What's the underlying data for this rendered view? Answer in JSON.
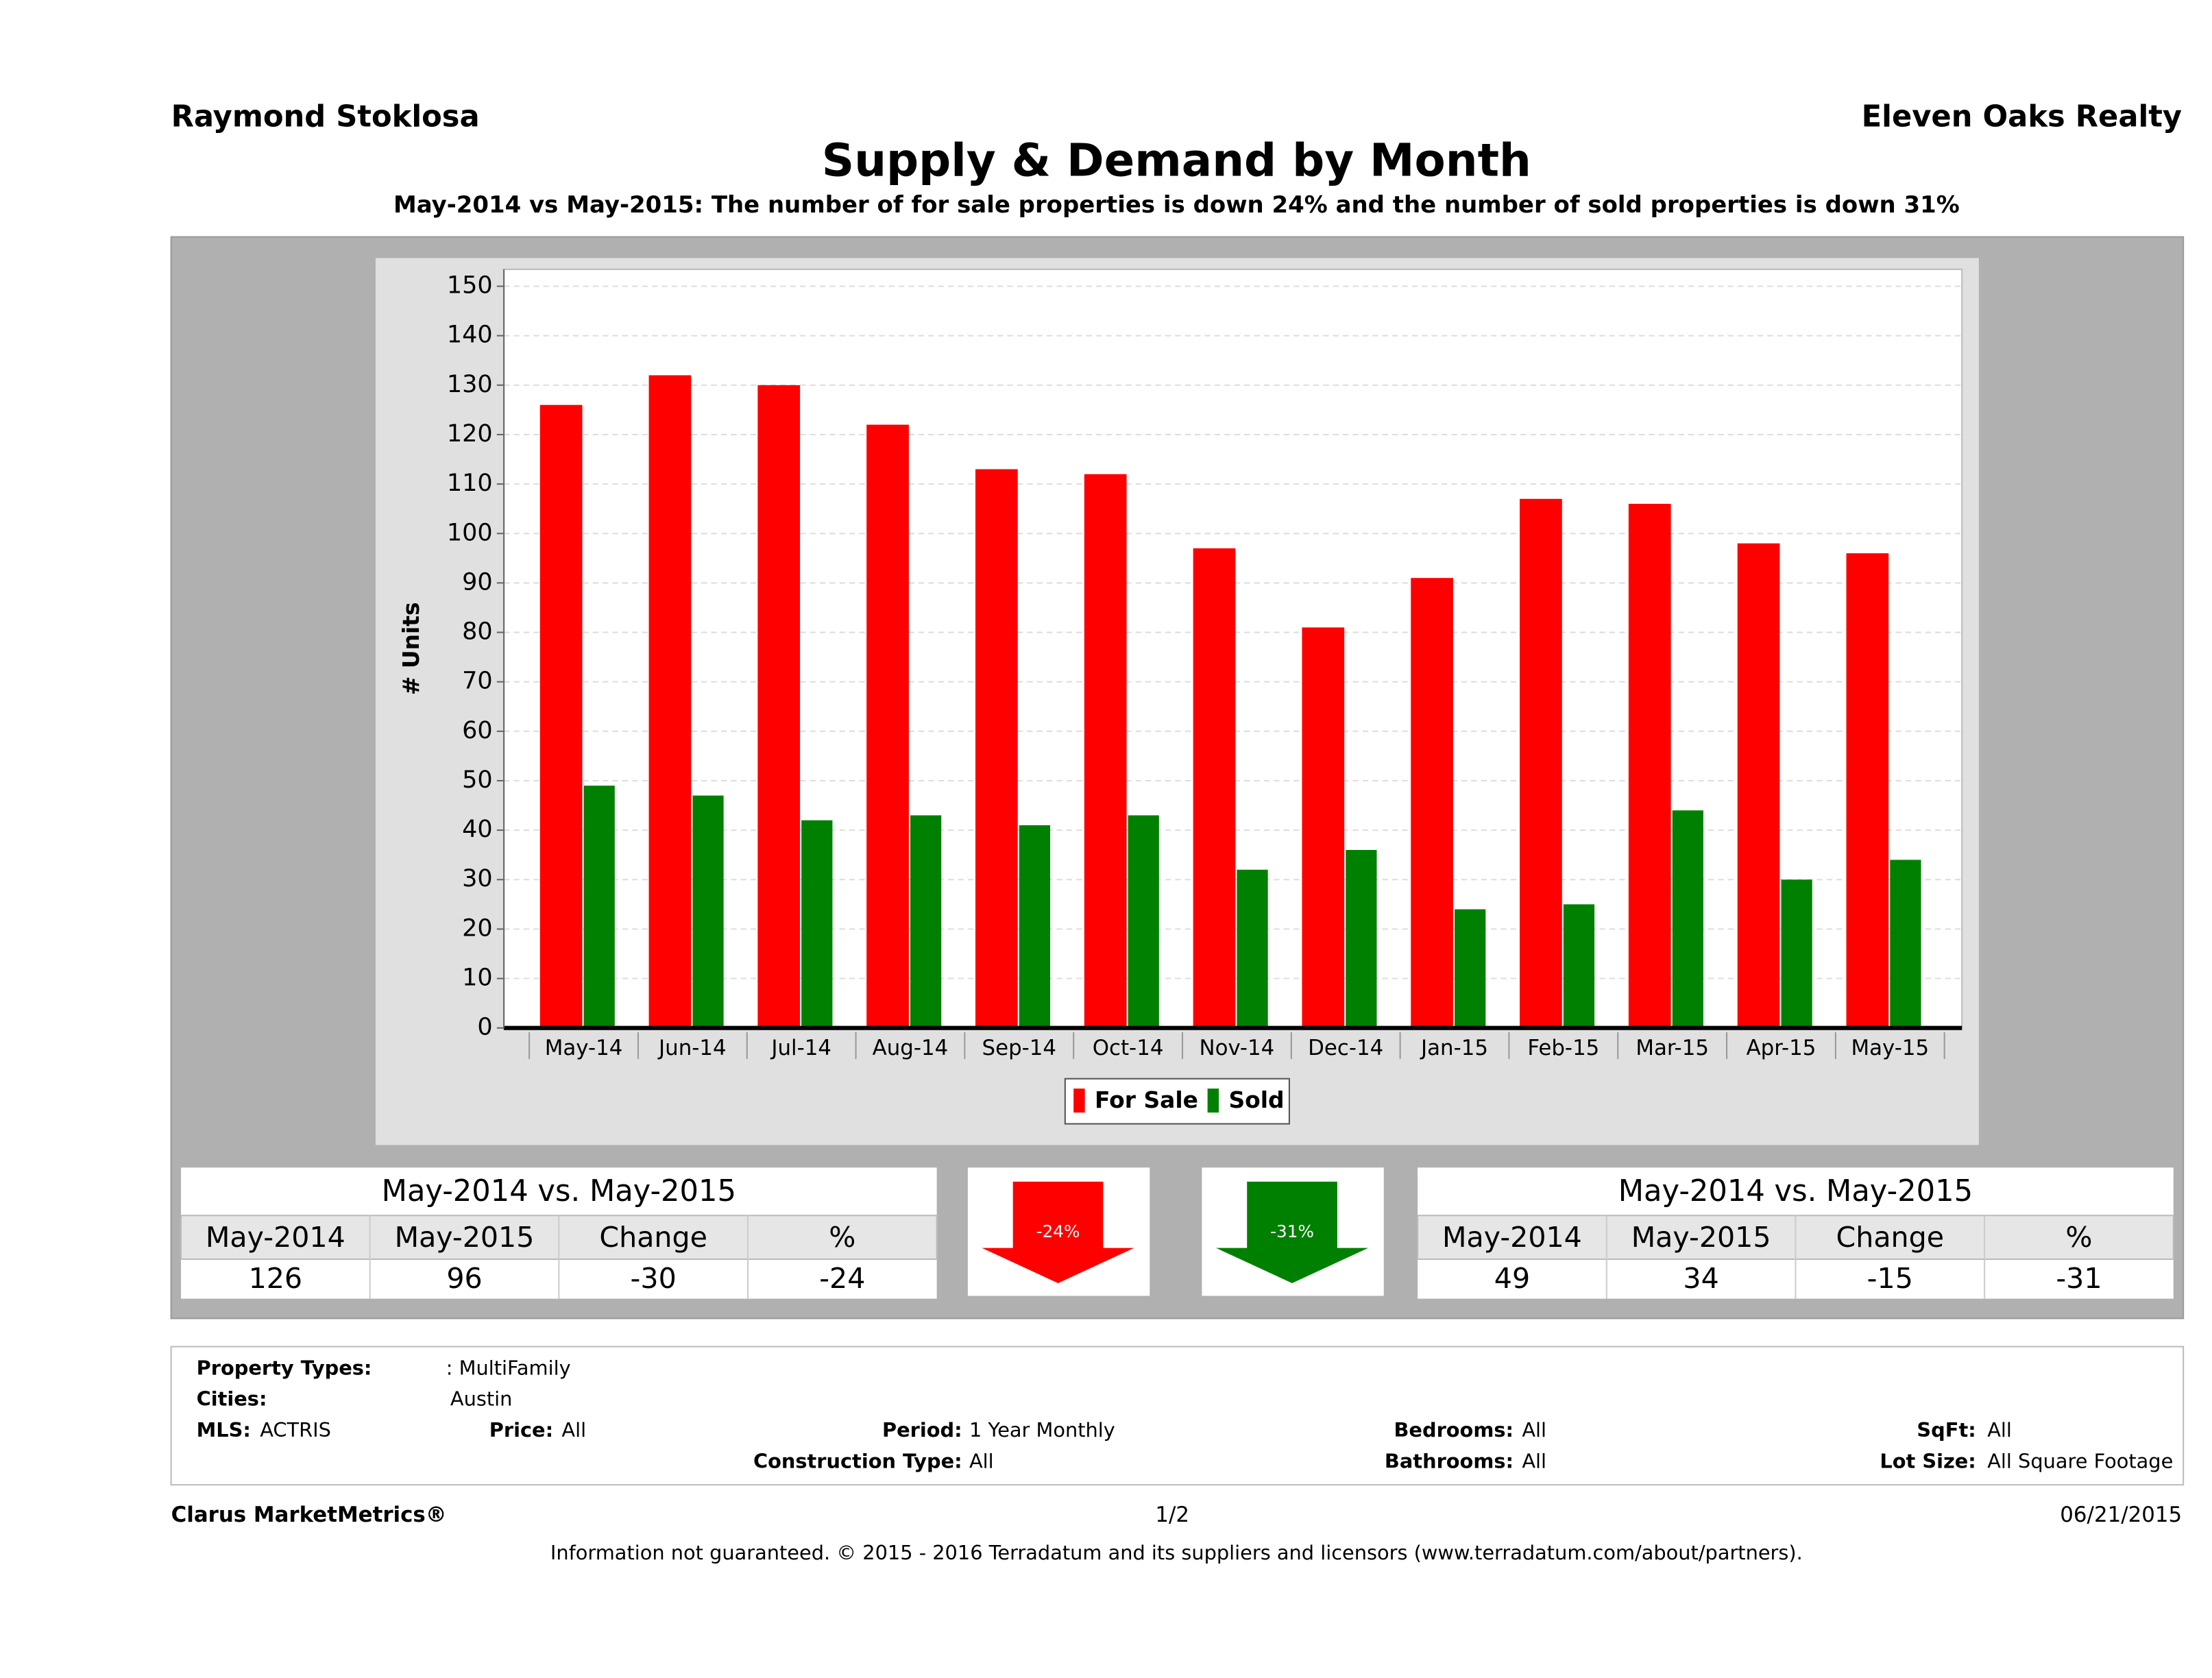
{
  "header": {
    "left": "Raymond Stoklosa",
    "right": "Eleven Oaks Realty"
  },
  "chart_data": {
    "type": "bar",
    "title": "Supply & Demand by Month",
    "subtitle": "May-2014 vs May-2015: The number of for sale properties is down 24% and the number of sold properties is down 31%",
    "y_label": "# Units",
    "categories": [
      "May-14",
      "Jun-14",
      "Jul-14",
      "Aug-14",
      "Sep-14",
      "Oct-14",
      "Nov-14",
      "Dec-14",
      "Jan-15",
      "Feb-15",
      "Mar-15",
      "Apr-15",
      "May-15"
    ],
    "series": [
      {
        "name": "For Sale",
        "color": "#ff0000",
        "values": [
          126,
          132,
          130,
          122,
          113,
          112,
          97,
          81,
          91,
          107,
          106,
          98,
          96
        ]
      },
      {
        "name": "Sold",
        "color": "#008000",
        "values": [
          49,
          47,
          42,
          43,
          41,
          43,
          32,
          36,
          24,
          25,
          44,
          30,
          34
        ]
      }
    ],
    "ylim": [
      0,
      150
    ],
    "yticks": [
      0,
      10,
      20,
      30,
      40,
      50,
      60,
      70,
      80,
      90,
      100,
      110,
      120,
      130,
      140,
      150
    ],
    "grid": true,
    "legend": "bottom"
  },
  "tables": [
    {
      "title": "May-2014 vs. May-2015",
      "headers": [
        "May-2014",
        "May-2015",
        "Change",
        "%"
      ],
      "values": [
        126,
        96,
        -30,
        -24
      ]
    },
    {
      "title": "May-2014 vs. May-2015",
      "headers": [
        "May-2014",
        "May-2015",
        "Change",
        "%"
      ],
      "values": [
        49,
        34,
        -15,
        -31
      ]
    }
  ],
  "arrows": [
    {
      "label": "-24%",
      "color": "#ff0000"
    },
    {
      "label": "-31%",
      "color": "#008000"
    }
  ],
  "info": [
    {
      "label": "Property Types:",
      "value": ": MultiFamily"
    },
    {
      "label": "Cities:",
      "value": "Austin"
    },
    {
      "label": "MLS:",
      "value": "ACTRIS"
    },
    {
      "label": "Price:",
      "value": "All"
    },
    {
      "label": "Period:",
      "value": "1 Year Monthly"
    },
    {
      "label": "Bedrooms:",
      "value": "All"
    },
    {
      "label": "SqFt:",
      "value": "All"
    },
    {
      "label": "Construction Type:",
      "value": "All"
    },
    {
      "label": "Bathrooms:",
      "value": "All"
    },
    {
      "label": "Lot Size:",
      "value": "All Square Footage"
    }
  ],
  "footer": {
    "left": "Clarus MarketMetrics®",
    "center": "1/2",
    "right": "06/21/2015",
    "disclaimer": "Information not guaranteed. © 2015 - 2016 Terradatum and its suppliers and licensors (www.terradatum.com/about/partners)."
  }
}
